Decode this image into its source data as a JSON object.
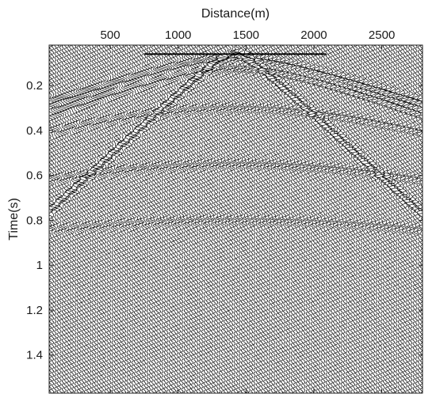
{
  "chart_data": {
    "type": "seismic-wiggle",
    "title": "",
    "xlabel": "Distance(m)",
    "ylabel": "Time(s)",
    "x_axis_position": "top",
    "y_axis_reversed": true,
    "xlim": [
      50,
      2800
    ],
    "ylim": [
      0.02,
      1.57
    ],
    "xticks": [
      500,
      1000,
      1500,
      2000,
      2500
    ],
    "xtick_labels": [
      "500",
      "1000",
      "1500",
      "2000",
      "2500"
    ],
    "yticks": [
      0.2,
      0.4,
      0.6,
      0.8,
      1,
      1.2,
      1.4
    ],
    "ytick_labels": [
      "0.2",
      "0.4",
      "0.6",
      "0.8",
      "1",
      "1.2",
      "1.4"
    ],
    "source_x": 1420,
    "trace_color": "#000000",
    "background": "#ffffff",
    "events": [
      {
        "name": "direct-wave",
        "t0": 0.06,
        "velocity": 1800,
        "strength": 1.0
      },
      {
        "name": "shallow-refraction",
        "t0": 0.08,
        "velocity": 5200,
        "strength": 0.9
      },
      {
        "name": "reflection-1",
        "t0": 0.12,
        "velocity": 4500,
        "strength": 0.8
      },
      {
        "name": "reflection-2",
        "t0": 0.3,
        "velocity": 5000,
        "strength": 0.6
      },
      {
        "name": "reflection-3",
        "t0": 0.55,
        "velocity": 4800,
        "strength": 0.6
      },
      {
        "name": "reflection-4",
        "t0": 0.8,
        "velocity": 5200,
        "strength": 0.55
      }
    ]
  }
}
